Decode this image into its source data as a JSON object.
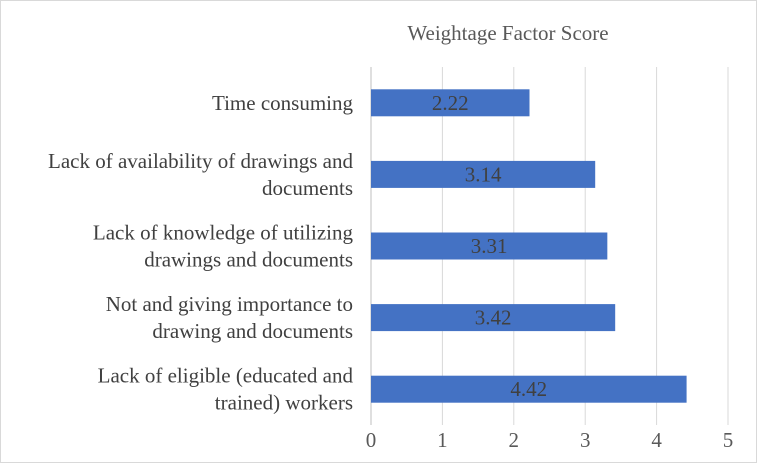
{
  "chart_data": {
    "type": "bar",
    "orientation": "horizontal",
    "title": "Weightage Factor Score",
    "xlabel": "",
    "ylabel": "",
    "xlim": [
      0,
      5
    ],
    "x_ticks": [
      "0",
      "1",
      "2",
      "3",
      "4",
      "5"
    ],
    "grid": true,
    "legend": "none",
    "bar_color": "#4472c4",
    "categories": [
      [
        "Time consuming"
      ],
      [
        "Lack of availability of drawings and",
        "documents"
      ],
      [
        "Lack of knowledge of utilizing",
        "drawings and documents"
      ],
      [
        "Not and giving importance to",
        "drawing and documents"
      ],
      [
        "Lack of eligible (educated and",
        "trained) workers"
      ]
    ],
    "values": [
      2.22,
      3.14,
      3.31,
      3.42,
      4.42
    ],
    "data_labels": [
      "2.22",
      "3.14",
      "3.31",
      "3.42",
      "4.42"
    ]
  }
}
